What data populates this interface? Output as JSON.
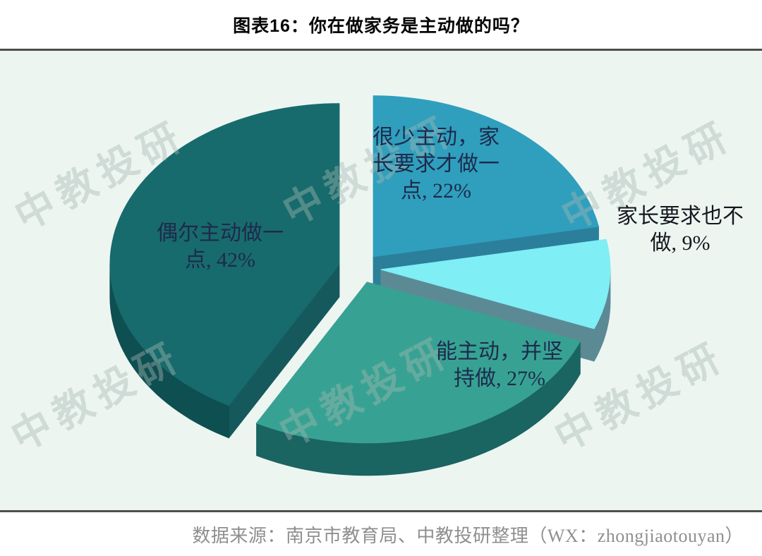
{
  "header": {
    "title": "图表16：你在做家务是主动做的吗？"
  },
  "watermark": {
    "text": "中教投研"
  },
  "footer": {
    "source": "数据来源：南京市教育局、中教投研整理（WX：zhongjiaotouyan）"
  },
  "chart_data": {
    "type": "pie",
    "style": "3d-exploded",
    "title": "图表16：你在做家务是主动做的吗？",
    "unit": "percent",
    "direction": "clockwise",
    "start_angle_deg": 0,
    "legend": "none",
    "background": "#edf5f1",
    "slices": [
      {
        "label": "很少主动，家长要求才做一点",
        "value": 22,
        "color_top": "#2f9fbd",
        "color_side": "#2b7f9b",
        "callout": "很少主动，家\n长要求才做一\n点, 22%"
      },
      {
        "label": "家长要求也不做",
        "value": 9,
        "color_top": "#7feef5",
        "color_side": "#5c8a94",
        "callout": "家长要求也不\n做, 9%"
      },
      {
        "label": "能主动，并坚持做",
        "value": 27,
        "color_top": "#37a293",
        "color_side": "#1a6462",
        "callout": "能主动，并坚\n持做, 27%"
      },
      {
        "label": "偶尔主动做一点",
        "value": 42,
        "color_top": "#176b6d",
        "color_side": "#0e4f52",
        "color_cut": "#15595d",
        "callout": "偶尔主动做一\n点, 42%"
      }
    ]
  }
}
